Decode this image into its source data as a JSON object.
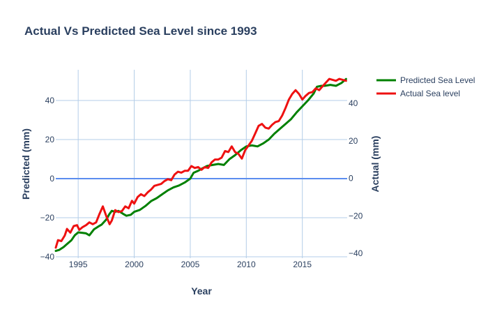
{
  "chart_data": {
    "type": "line",
    "title": "Actual Vs Predicted Sea Level since 1993",
    "xlabel": "Year",
    "ylabel_left": "Predicted (mm)",
    "ylabel_right": "Actual (mm)",
    "xlim": [
      1993,
      2019
    ],
    "ylim_left": [
      -40,
      50
    ],
    "ylim_right": [
      -40,
      50
    ],
    "x_ticks": [
      1995,
      2000,
      2005,
      2010,
      2015
    ],
    "y_ticks_left": [
      -40,
      -20,
      0,
      20,
      40
    ],
    "y_ticks_right": [
      -40,
      -20,
      0,
      20,
      40
    ],
    "zero_line": true,
    "grid": true,
    "legend_position": "top-right",
    "series": [
      {
        "name": "Predicted Sea Level",
        "color": "#008000",
        "axis": "left",
        "x": [
          1993.0,
          1993.3,
          1993.7,
          1994.0,
          1994.4,
          1994.7,
          1995.0,
          1995.4,
          1995.7,
          1996.0,
          1996.4,
          1996.8,
          1997.1,
          1997.5,
          1997.8,
          1998.0,
          1998.3,
          1998.6,
          1999.0,
          1999.3,
          1999.7,
          2000.0,
          2000.5,
          2001.0,
          2001.5,
          2002.0,
          2002.5,
          2003.0,
          2003.5,
          2004.0,
          2004.5,
          2005.0,
          2005.3,
          2005.7,
          2006.0,
          2006.5,
          2007.0,
          2007.5,
          2008.0,
          2008.5,
          2009.0,
          2009.5,
          2010.0,
          2010.5,
          2011.0,
          2011.5,
          2012.0,
          2012.5,
          2013.0,
          2013.5,
          2014.0,
          2014.5,
          2015.0,
          2015.5,
          2016.0,
          2016.3,
          2016.7,
          2017.0,
          2017.5,
          2018.0,
          2018.5,
          2018.9
        ],
        "values": [
          -37.0,
          -36.5,
          -35.0,
          -33.5,
          -31.5,
          -29.0,
          -27.5,
          -27.8,
          -28.0,
          -29.0,
          -26.0,
          -24.5,
          -23.5,
          -21.0,
          -18.0,
          -16.5,
          -17.0,
          -16.5,
          -18.0,
          -19.0,
          -18.5,
          -17.0,
          -16.0,
          -14.0,
          -11.5,
          -10.0,
          -8.0,
          -6.0,
          -4.5,
          -3.5,
          -2.0,
          0.0,
          3.0,
          4.0,
          5.0,
          6.5,
          7.0,
          7.5,
          7.0,
          10.0,
          12.0,
          14.5,
          16.5,
          17.0,
          16.5,
          18.0,
          20.0,
          23.0,
          25.5,
          28.0,
          30.5,
          34.0,
          37.0,
          40.0,
          43.5,
          47.0,
          47.5,
          47.5,
          48.0,
          47.5,
          49.0,
          51.0
        ]
      },
      {
        "name": "Actual Sea level",
        "color": "#ee1111",
        "axis": "right",
        "x": [
          1993.0,
          1993.2,
          1993.5,
          1993.8,
          1994.0,
          1994.3,
          1994.6,
          1994.9,
          1995.1,
          1995.4,
          1995.7,
          1996.0,
          1996.3,
          1996.6,
          1996.9,
          1997.2,
          1997.5,
          1997.8,
          1998.0,
          1998.3,
          1998.6,
          1998.9,
          1999.2,
          1999.5,
          1999.8,
          2000.0,
          2000.3,
          2000.6,
          2000.9,
          2001.2,
          2001.5,
          2001.8,
          2002.1,
          2002.4,
          2002.7,
          2003.0,
          2003.3,
          2003.6,
          2003.9,
          2004.2,
          2004.5,
          2004.8,
          2005.1,
          2005.4,
          2005.7,
          2006.0,
          2006.3,
          2006.6,
          2006.9,
          2007.2,
          2007.5,
          2007.8,
          2008.1,
          2008.4,
          2008.7,
          2009.0,
          2009.3,
          2009.6,
          2009.9,
          2010.2,
          2010.5,
          2010.8,
          2011.1,
          2011.4,
          2011.7,
          2012.0,
          2012.3,
          2012.6,
          2012.9,
          2013.2,
          2013.5,
          2013.8,
          2014.1,
          2014.4,
          2014.7,
          2015.0,
          2015.3,
          2015.6,
          2015.9,
          2016.2,
          2016.5,
          2016.8,
          2017.1,
          2017.4,
          2017.7,
          2018.0,
          2018.3,
          2018.6,
          2018.9
        ],
        "values": [
          -37.0,
          -33.0,
          -33.5,
          -30.5,
          -27.0,
          -29.0,
          -25.5,
          -25.0,
          -27.5,
          -26.0,
          -25.0,
          -23.5,
          -24.5,
          -23.5,
          -19.0,
          -15.0,
          -20.0,
          -24.5,
          -22.5,
          -17.0,
          -18.0,
          -17.5,
          -15.0,
          -16.0,
          -12.0,
          -13.5,
          -10.0,
          -8.5,
          -9.5,
          -7.5,
          -6.0,
          -4.0,
          -3.5,
          -3.0,
          -1.5,
          -0.5,
          -1.0,
          2.0,
          3.5,
          3.0,
          4.0,
          4.0,
          6.5,
          5.5,
          6.0,
          4.5,
          6.0,
          5.5,
          8.5,
          10.0,
          10.0,
          11.0,
          14.5,
          14.0,
          17.0,
          14.0,
          13.0,
          10.5,
          15.0,
          17.5,
          20.0,
          24.0,
          28.0,
          29.0,
          27.0,
          26.5,
          28.5,
          30.0,
          30.5,
          33.5,
          37.5,
          42.0,
          45.0,
          47.0,
          45.0,
          42.0,
          44.0,
          45.5,
          46.0,
          48.0,
          47.0,
          49.0,
          51.0,
          53.0,
          52.5,
          52.0,
          53.0,
          52.5,
          52.0
        ]
      }
    ]
  }
}
